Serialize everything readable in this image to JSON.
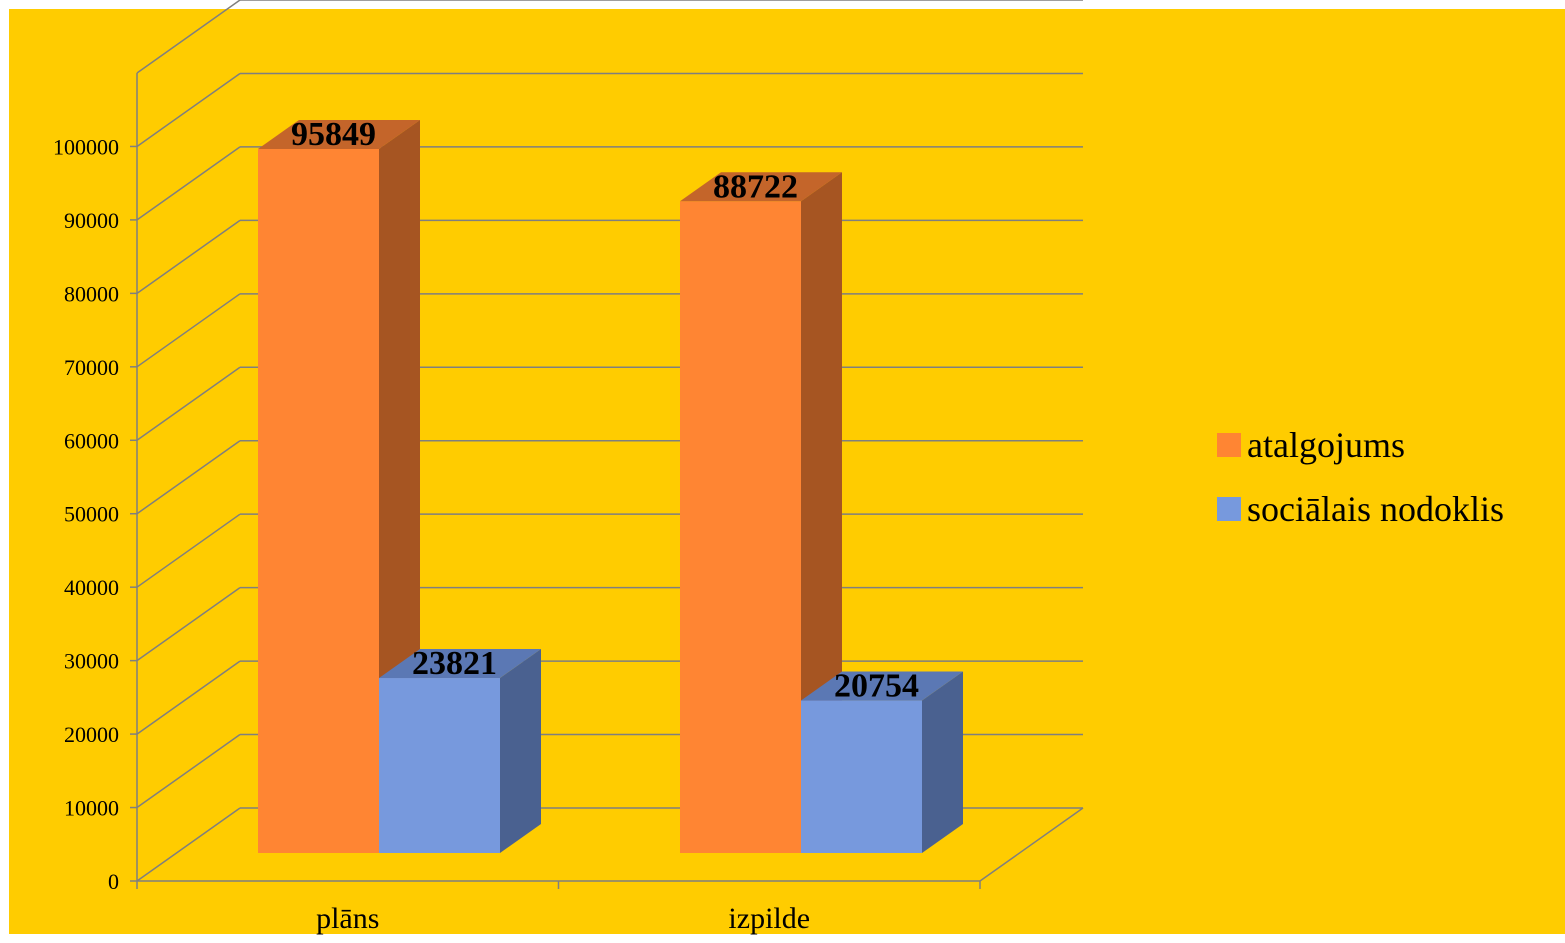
{
  "colors": {
    "background": "#FFCC00",
    "gridline": "#7F7F7F"
  },
  "chart_data": {
    "type": "bar",
    "style": "3d-clustered-column",
    "title": "",
    "xlabel": "",
    "ylabel": "",
    "categories": [
      "plāns",
      "izpilde"
    ],
    "series": [
      {
        "name": "atalgojums",
        "values": [
          95849,
          88722
        ],
        "data_labels": [
          "95849",
          "88722"
        ],
        "color": "#FF8533",
        "side_color": "#A65522",
        "top_color": "#C4652A"
      },
      {
        "name": "sociālais nodoklis",
        "values": [
          23821,
          20754
        ],
        "data_labels": [
          "23821",
          "20754"
        ],
        "color": "#7799DD",
        "side_color": "#4A6190",
        "top_color": "#5B78B4"
      }
    ],
    "ylim": [
      0,
      110000
    ],
    "ytick_step": 10000,
    "y_tick_labels": [
      "0",
      "10000",
      "20000",
      "30000",
      "40000",
      "50000",
      "60000",
      "70000",
      "80000",
      "90000",
      "100000"
    ],
    "grid": true,
    "legend_position": "right"
  }
}
